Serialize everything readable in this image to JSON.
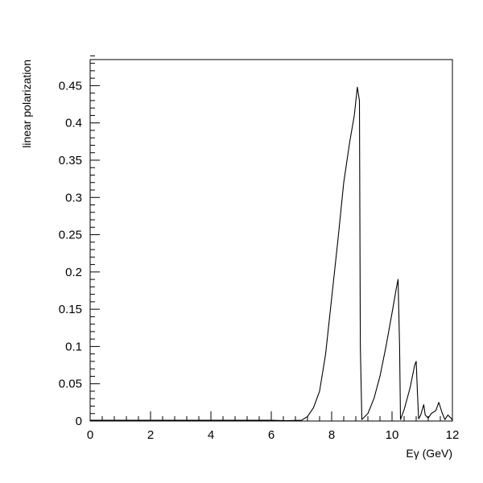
{
  "chart_data": {
    "type": "line",
    "title": "",
    "xlabel": "Eγ (GeV)",
    "ylabel": "linear polarization",
    "xlim": [
      0,
      12
    ],
    "ylim": [
      0,
      0.485
    ],
    "x_ticks": [
      0,
      2,
      4,
      6,
      8,
      10,
      12
    ],
    "x_tick_labels": [
      "0",
      "2",
      "4",
      "6",
      "8",
      "10",
      "12"
    ],
    "y_ticks": [
      0,
      0.05,
      0.1,
      0.15,
      0.2,
      0.25,
      0.3,
      0.35,
      0.4,
      0.45
    ],
    "y_tick_labels": [
      "0",
      "0.05",
      "0.1",
      "0.15",
      "0.2",
      "0.25",
      "0.3",
      "0.35",
      "0.4",
      "0.45"
    ],
    "x_minor_step": 0.4,
    "y_minor_step": 0.01,
    "grid": false,
    "series": [
      {
        "points": [
          [
            0,
            0.001
          ],
          [
            6.0,
            0.001
          ],
          [
            6.5,
            0.0005
          ],
          [
            7.0,
            0.001
          ],
          [
            7.2,
            0.006
          ],
          [
            7.4,
            0.018
          ],
          [
            7.6,
            0.04
          ],
          [
            7.8,
            0.09
          ],
          [
            8.0,
            0.165
          ],
          [
            8.2,
            0.24
          ],
          [
            8.4,
            0.32
          ],
          [
            8.6,
            0.375
          ],
          [
            8.75,
            0.41
          ],
          [
            8.85,
            0.448
          ],
          [
            8.92,
            0.43
          ],
          [
            8.95,
            0.1
          ],
          [
            9.0,
            0.002
          ],
          [
            9.2,
            0.01
          ],
          [
            9.4,
            0.03
          ],
          [
            9.6,
            0.06
          ],
          [
            9.8,
            0.1
          ],
          [
            10.0,
            0.145
          ],
          [
            10.15,
            0.18
          ],
          [
            10.2,
            0.19
          ],
          [
            10.25,
            0.1
          ],
          [
            10.28,
            0.002
          ],
          [
            10.4,
            0.015
          ],
          [
            10.6,
            0.045
          ],
          [
            10.75,
            0.075
          ],
          [
            10.8,
            0.08
          ],
          [
            10.84,
            0.04
          ],
          [
            10.88,
            0.003
          ],
          [
            10.95,
            0.008
          ],
          [
            11.05,
            0.022
          ],
          [
            11.1,
            0.008
          ],
          [
            11.2,
            0.004
          ],
          [
            11.3,
            0.01
          ],
          [
            11.45,
            0.014
          ],
          [
            11.55,
            0.025
          ],
          [
            11.65,
            0.012
          ],
          [
            11.75,
            0.002
          ],
          [
            11.85,
            0.008
          ],
          [
            11.95,
            0.004
          ],
          [
            12.0,
            0.001
          ]
        ]
      }
    ]
  }
}
